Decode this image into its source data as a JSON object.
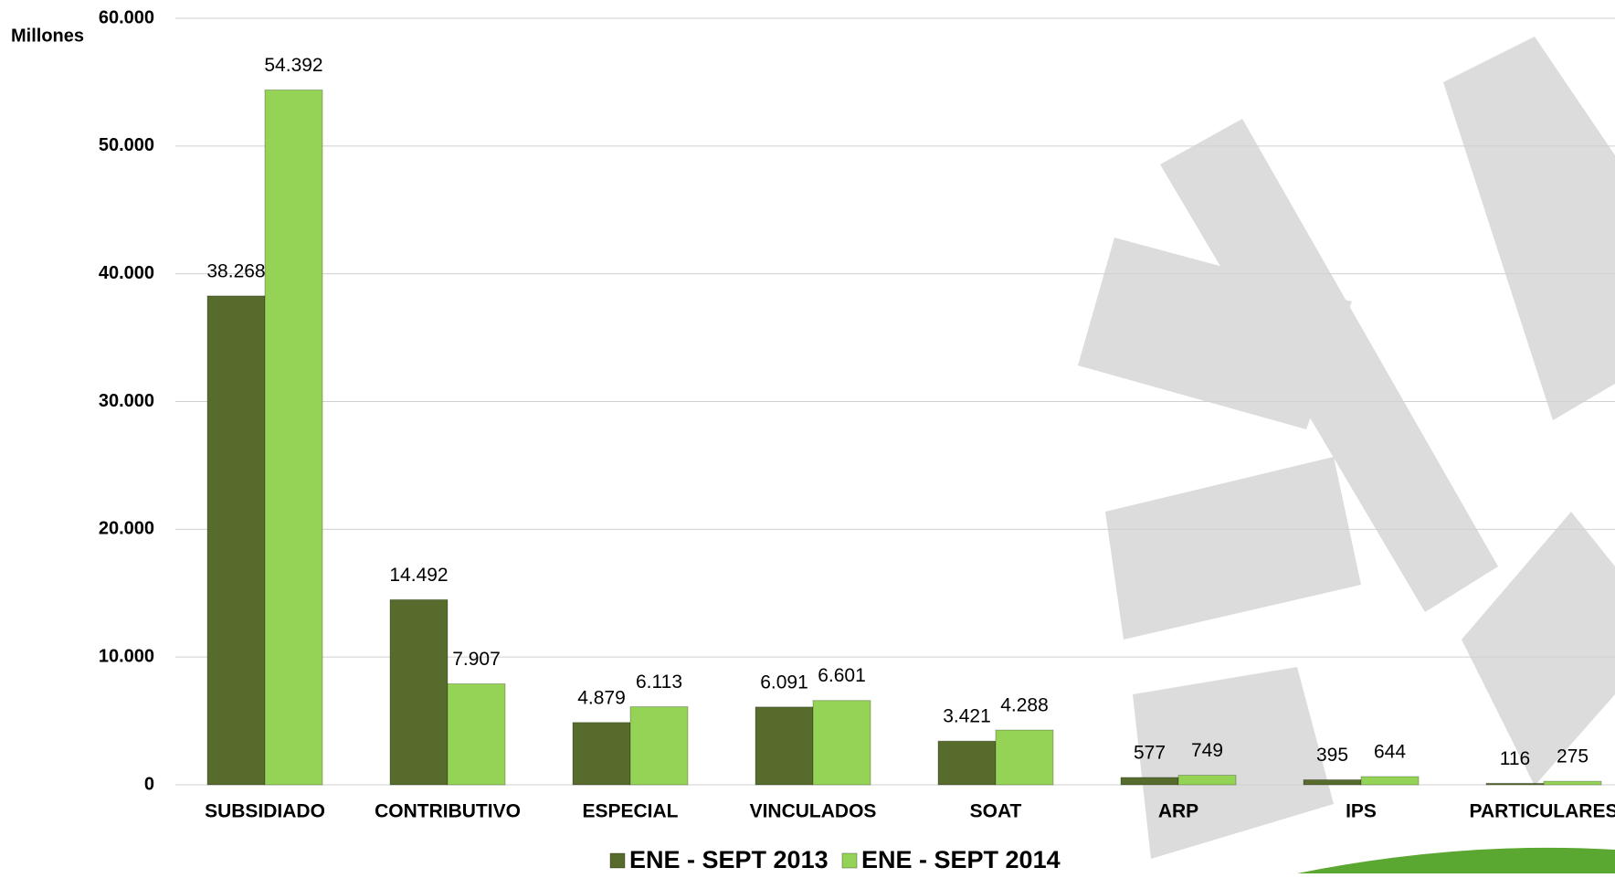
{
  "chart_data": {
    "type": "bar",
    "y_axis_label": "Millones",
    "categories": [
      "SUBSIDIADO",
      "CONTRIBUTIVO",
      "ESPECIAL",
      "VINCULADOS",
      "SOAT",
      "ARP",
      "IPS",
      "PARTICULARES"
    ],
    "series": [
      {
        "name": "ENE - SEPT 2013",
        "color": "#566b2c",
        "values": [
          38268,
          14492,
          4879,
          6091,
          3421,
          577,
          395,
          116
        ],
        "value_labels": [
          "38.268",
          "14.492",
          "4.879",
          "6.091",
          "3.421",
          "577",
          "395",
          "116"
        ]
      },
      {
        "name": "ENE - SEPT 2014",
        "color": "#94d356",
        "values": [
          54392,
          7907,
          6113,
          6601,
          4288,
          749,
          644,
          275
        ],
        "value_labels": [
          "54.392",
          "7.907",
          "6.113",
          "6.601",
          "4.288",
          "749",
          "644",
          "275"
        ]
      }
    ],
    "ylim": [
      0,
      60000
    ],
    "yticks": [
      {
        "value": 0,
        "label": "0"
      },
      {
        "value": 10000,
        "label": "10.000"
      },
      {
        "value": 20000,
        "label": "20.000"
      },
      {
        "value": 30000,
        "label": "30.000"
      },
      {
        "value": 40000,
        "label": "40.000"
      },
      {
        "value": 50000,
        "label": "50.000"
      },
      {
        "value": 60000,
        "label": "60.000"
      }
    ],
    "grid": true,
    "legend": "bottom"
  }
}
